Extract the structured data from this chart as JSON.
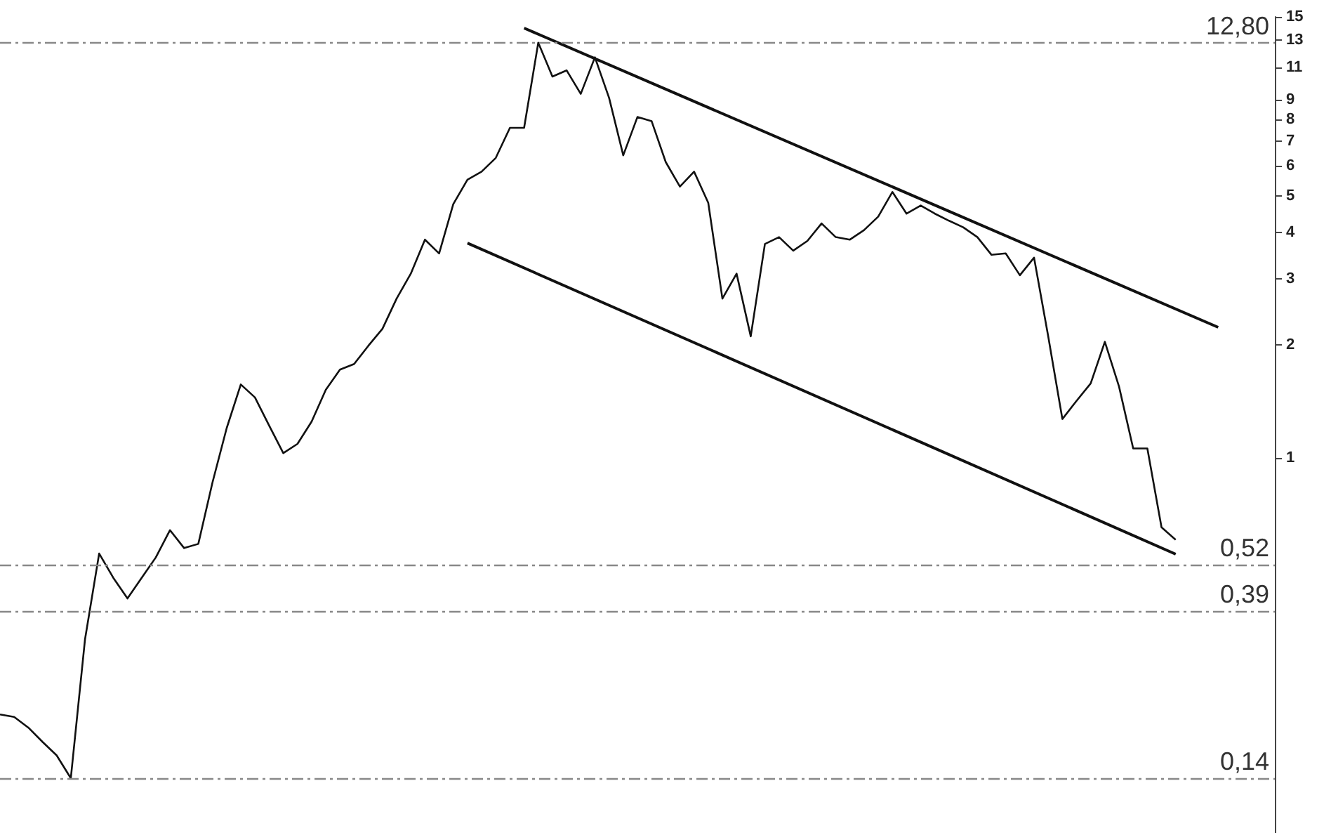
{
  "chart_data": {
    "type": "line",
    "categories": [
      null,
      null,
      null,
      null,
      null,
      null,
      null,
      null,
      null,
      null,
      null,
      null,
      null,
      null,
      null,
      null,
      null,
      null,
      null,
      null,
      null,
      null,
      null,
      null,
      null,
      null,
      null,
      null,
      null,
      null,
      null,
      null,
      null,
      null,
      null,
      null,
      null,
      null,
      null,
      null,
      null,
      null,
      null,
      null,
      null,
      null,
      null,
      null,
      null,
      null,
      null,
      null,
      null,
      null,
      null,
      null,
      null,
      null,
      null,
      null,
      null,
      null,
      null,
      null,
      null,
      null,
      null,
      null,
      null,
      null,
      null,
      null,
      null,
      null,
      null,
      null,
      null,
      null,
      null,
      null,
      null,
      null,
      null,
      null,
      null,
      null,
      null,
      null,
      null,
      null,
      null
    ],
    "series": [
      {
        "color": "#111111",
        "values": [
          0.207,
          0.204,
          0.191,
          0.175,
          0.161,
          0.14,
          0.328,
          0.556,
          0.479,
          0.422,
          0.479,
          0.543,
          0.642,
          0.575,
          0.59,
          0.86,
          1.2,
          1.57,
          1.45,
          1.22,
          1.03,
          1.09,
          1.25,
          1.52,
          1.72,
          1.78,
          1.99,
          2.21,
          2.66,
          3.1,
          3.82,
          3.51,
          4.75,
          5.52,
          5.8,
          6.31,
          7.59,
          7.59,
          12.8,
          10.4,
          10.8,
          9.35,
          11.7,
          9.12,
          6.41,
          8.11,
          7.91,
          6.15,
          5.29,
          5.8,
          4.79,
          2.66,
          3.1,
          2.11,
          3.72,
          3.88,
          3.57,
          3.79,
          4.22,
          3.88,
          3.82,
          4.05,
          4.4,
          5.12,
          4.48,
          4.71,
          4.48,
          4.29,
          4.12,
          3.88,
          3.48,
          3.51,
          3.07,
          3.42,
          2.11,
          1.27,
          1.42,
          1.58,
          2.04,
          1.55,
          1.06,
          1.06,
          0.653,
          0.605,
          null,
          null,
          null,
          null,
          null,
          null,
          null
        ]
      },
      {
        "type": "line",
        "color": "#111111",
        "values": [
          null,
          null,
          null,
          null,
          null,
          null,
          null,
          null,
          null,
          null,
          null,
          null,
          null,
          null,
          null,
          null,
          null,
          null,
          null,
          null,
          null,
          null,
          null,
          null,
          null,
          null,
          null,
          null,
          null,
          null,
          null,
          null,
          null,
          null,
          null,
          null,
          null,
          14.0,
          null,
          null,
          null,
          null,
          null,
          null,
          null,
          null,
          null,
          null,
          null,
          null,
          null,
          null,
          null,
          null,
          null,
          null,
          null,
          null,
          null,
          null,
          null,
          null,
          null,
          null,
          null,
          null,
          null,
          null,
          null,
          null,
          null,
          null,
          null,
          null,
          null,
          null,
          null,
          null,
          null,
          null,
          null,
          null,
          null,
          null,
          null,
          null,
          2.23,
          null,
          null,
          null,
          null
        ]
      },
      {
        "type": "line",
        "color": "#111111",
        "values": [
          null,
          null,
          null,
          null,
          null,
          null,
          null,
          null,
          null,
          null,
          null,
          null,
          null,
          null,
          null,
          null,
          null,
          null,
          null,
          null,
          null,
          null,
          null,
          null,
          null,
          null,
          null,
          null,
          null,
          null,
          null,
          null,
          null,
          3.74,
          null,
          null,
          null,
          null,
          null,
          null,
          null,
          null,
          null,
          null,
          null,
          null,
          null,
          null,
          null,
          null,
          null,
          null,
          null,
          null,
          null,
          null,
          null,
          null,
          null,
          null,
          null,
          null,
          null,
          null,
          null,
          null,
          null,
          null,
          null,
          null,
          null,
          null,
          null,
          null,
          null,
          null,
          null,
          null,
          null,
          null,
          null,
          null,
          null,
          0.554,
          null,
          null,
          null,
          null,
          null,
          null,
          null
        ]
      }
    ],
    "log": true,
    "ylim": [
      0.1,
      15
    ],
    "yticks": [
      1,
      2,
      3,
      4,
      5,
      6,
      7,
      8,
      9,
      11,
      13,
      15
    ],
    "tick_labels": "y",
    "ref_lines": [
      {
        "axis": "y",
        "value": 12.8,
        "label": "12,80",
        "color": "#888888",
        "line_style": "dashed"
      },
      {
        "axis": "y",
        "value": 0.52,
        "label": "0,52",
        "color": "#888888",
        "line_style": "dashed"
      },
      {
        "axis": "y",
        "value": 0.39,
        "label": "0,39",
        "color": "#888888",
        "line_style": "dashed"
      },
      {
        "axis": "y",
        "value": 0.14,
        "label": "0,14",
        "color": "#888888",
        "line_style": "dashed"
      }
    ]
  }
}
